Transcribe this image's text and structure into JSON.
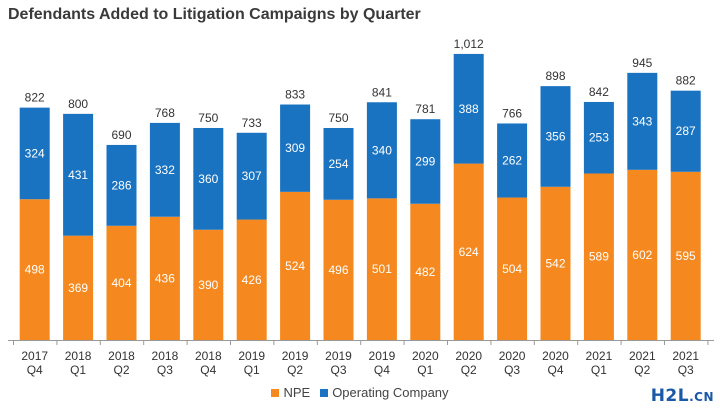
{
  "chart_data": {
    "type": "bar",
    "stacked": true,
    "title": "Defendants Added to Litigation Campaigns by Quarter",
    "categories": [
      [
        "2017",
        "Q4"
      ],
      [
        "2018",
        "Q1"
      ],
      [
        "2018",
        "Q2"
      ],
      [
        "2018",
        "Q3"
      ],
      [
        "2018",
        "Q4"
      ],
      [
        "2019",
        "Q1"
      ],
      [
        "2019",
        "Q2"
      ],
      [
        "2019",
        "Q3"
      ],
      [
        "2019",
        "Q4"
      ],
      [
        "2020",
        "Q1"
      ],
      [
        "2020",
        "Q2"
      ],
      [
        "2020",
        "Q3"
      ],
      [
        "2020",
        "Q4"
      ],
      [
        "2021",
        "Q1"
      ],
      [
        "2021",
        "Q2"
      ],
      [
        "2021",
        "Q3"
      ]
    ],
    "series": [
      {
        "name": "NPE",
        "color": "#f5891f",
        "values": [
          498,
          369,
          404,
          436,
          390,
          426,
          524,
          496,
          501,
          482,
          624,
          504,
          542,
          589,
          602,
          595
        ]
      },
      {
        "name": "Operating Company",
        "color": "#1a73c0",
        "values": [
          324,
          431,
          286,
          332,
          360,
          307,
          309,
          254,
          340,
          299,
          388,
          262,
          356,
          253,
          343,
          287
        ]
      }
    ],
    "totals": [
      "822",
      "800",
      "690",
      "768",
      "750",
      "733",
      "833",
      "750",
      "841",
      "781",
      "1,012",
      "766",
      "898",
      "842",
      "945",
      "882"
    ],
    "ylim": [
      0,
      1040
    ],
    "grid": false,
    "legend_position": "bottom-center"
  },
  "watermark": {
    "main": "H2L",
    "sub": ".CN"
  }
}
